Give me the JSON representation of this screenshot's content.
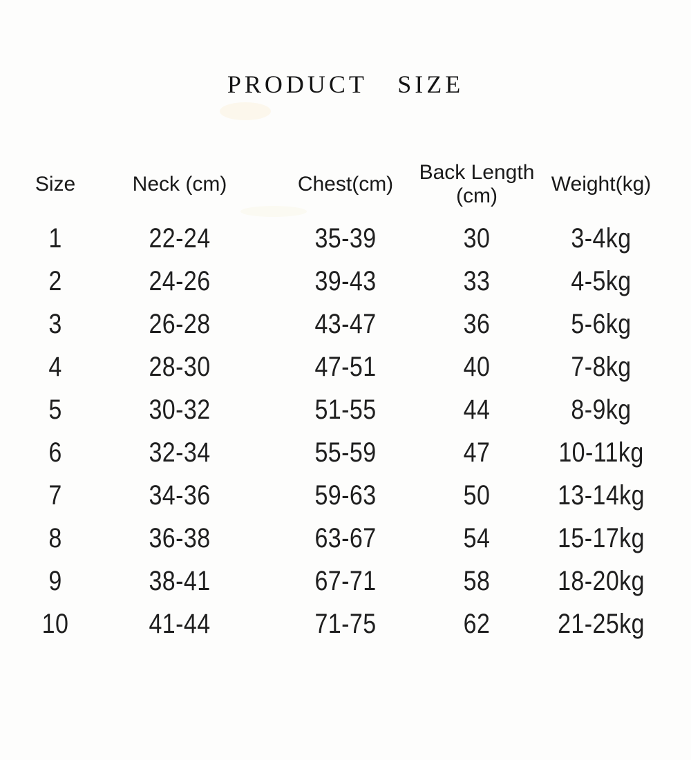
{
  "page": {
    "title": "PRODUCT SIZE",
    "background_color": "#fdfdfc",
    "text_color": "#1c1c1c"
  },
  "table": {
    "headers": {
      "size": "Size",
      "neck": "Neck (cm)",
      "chest": "Chest(cm)",
      "back_length": "Back Length\n(cm)",
      "weight": "Weight(kg)"
    },
    "rows": [
      [
        "1",
        "22-24",
        "35-39",
        "30",
        "3-4kg"
      ],
      [
        "2",
        "24-26",
        "39-43",
        "33",
        "4-5kg"
      ],
      [
        "3",
        "26-28",
        "43-47",
        "36",
        "5-6kg"
      ],
      [
        "4",
        "28-30",
        "47-51",
        "40",
        "7-8kg"
      ],
      [
        "5",
        "30-32",
        "51-55",
        "44",
        "8-9kg"
      ],
      [
        "6",
        "32-34",
        "55-59",
        "47",
        "10-11kg"
      ],
      [
        "7",
        "34-36",
        "59-63",
        "50",
        "13-14kg"
      ],
      [
        "8",
        "36-38",
        "63-67",
        "54",
        "15-17kg"
      ],
      [
        "9",
        "38-41",
        "67-71",
        "58",
        "18-20kg"
      ],
      [
        "10",
        "41-44",
        "71-75",
        "62",
        "21-25kg"
      ]
    ]
  }
}
